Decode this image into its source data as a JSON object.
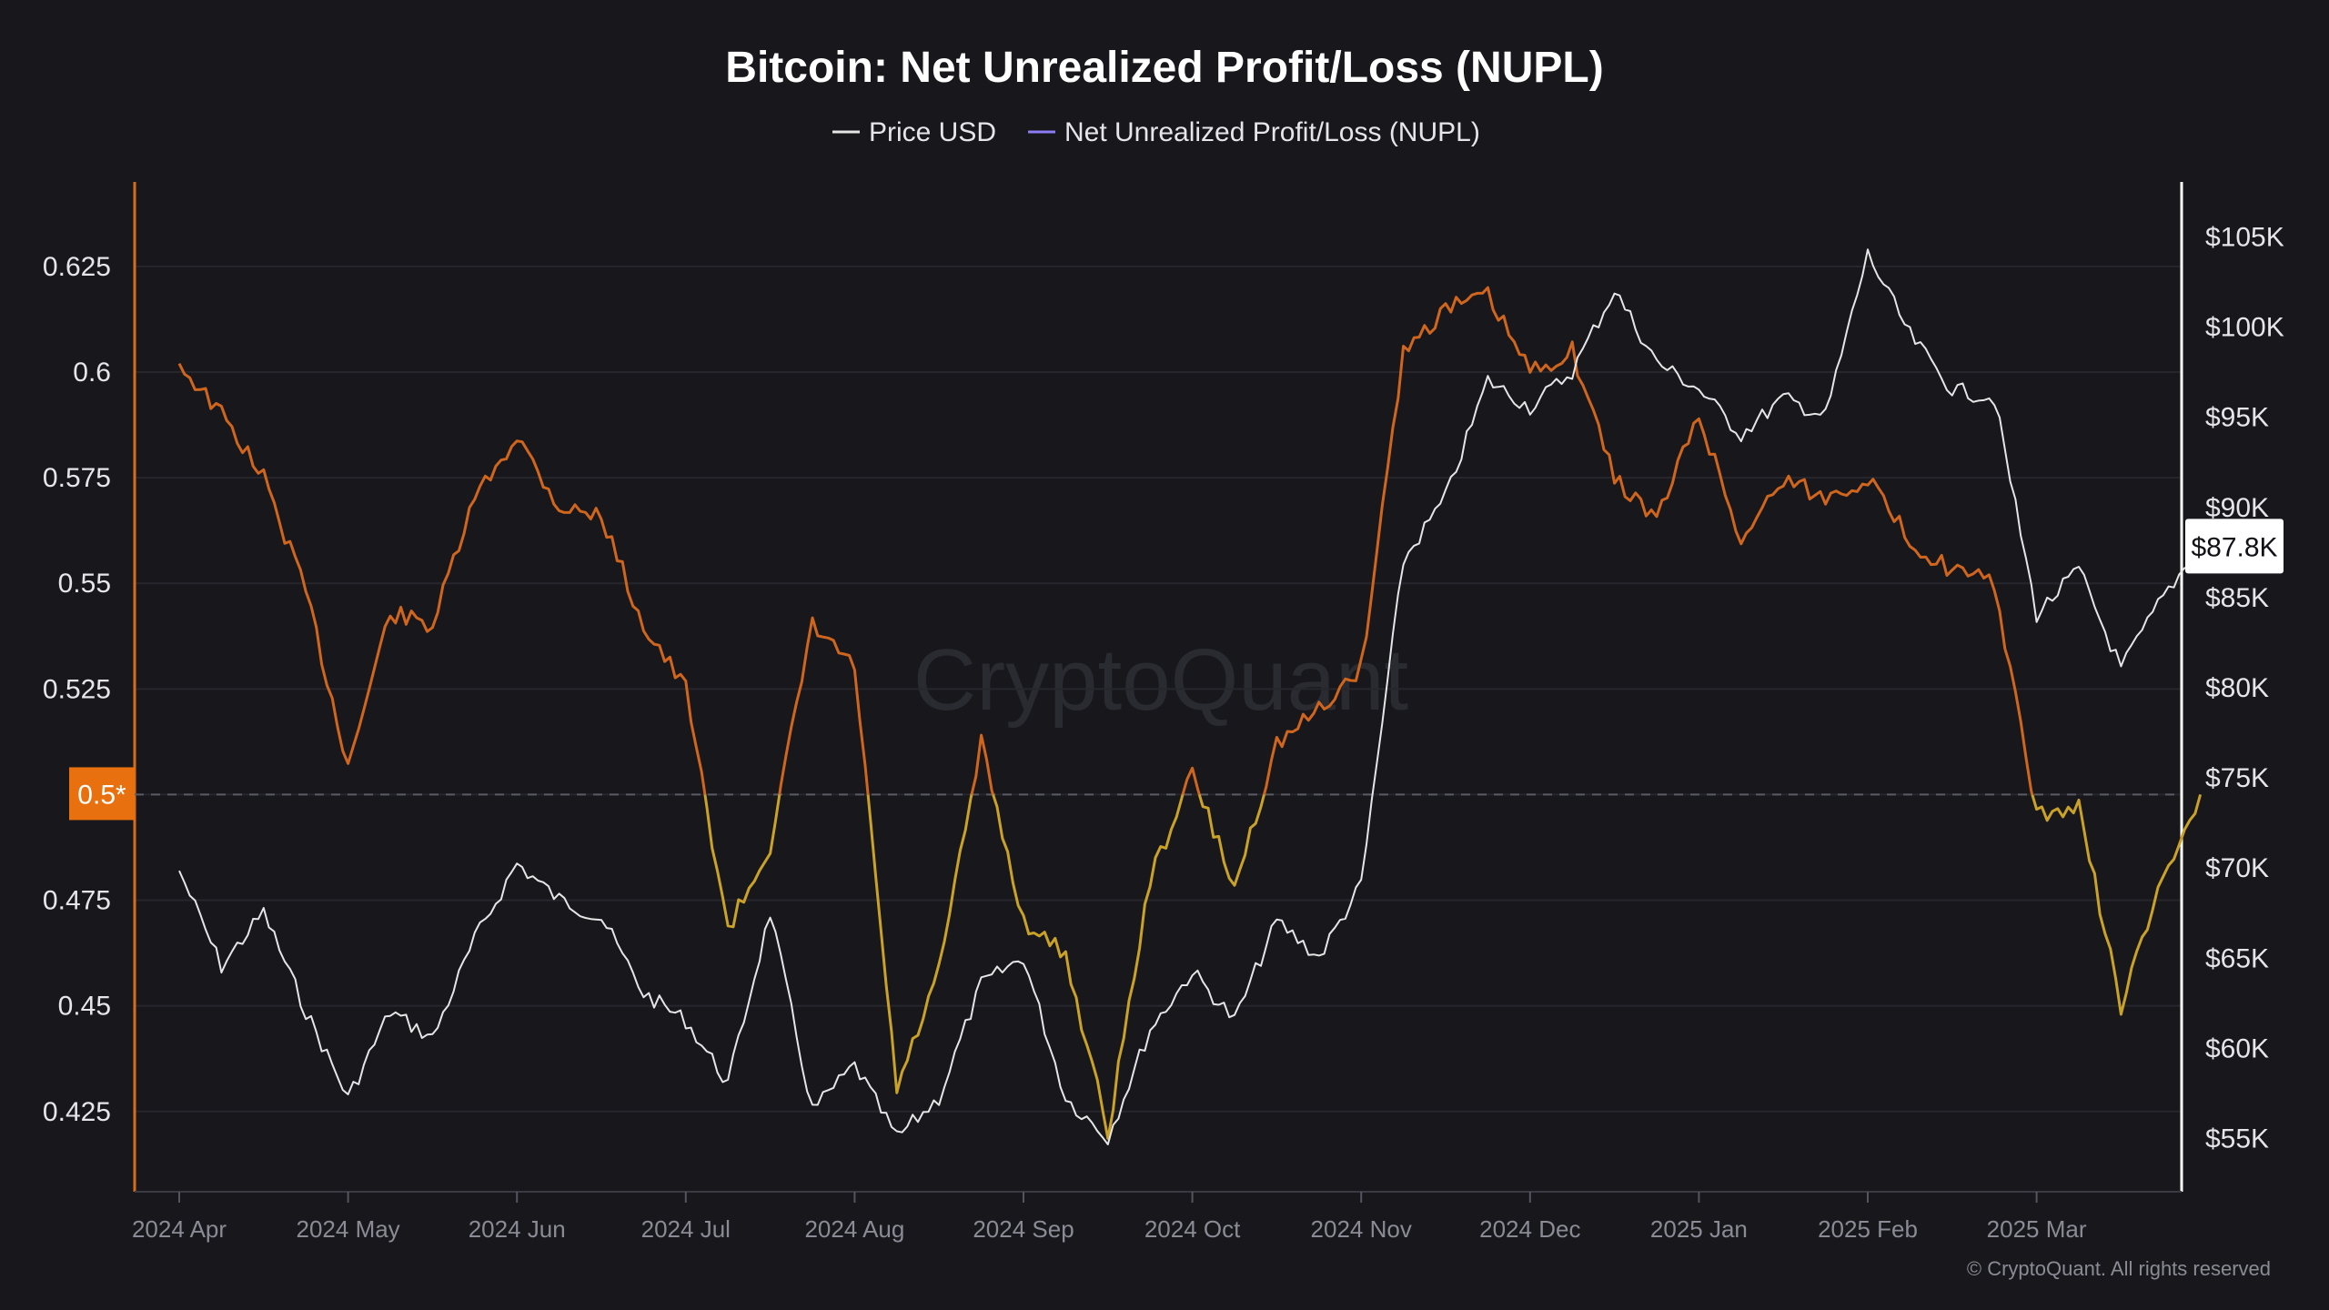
{
  "chart_data": {
    "type": "line",
    "title": "Bitcoin: Net Unrealized Profit/Loss (NUPL)",
    "legend": [
      {
        "name": "Price USD",
        "color": "#e6e6e6"
      },
      {
        "name": "Net Unrealized Profit/Loss (NUPL)",
        "color": "#8b7cf6"
      }
    ],
    "x_tick_labels": [
      "2024 Apr",
      "2024 May",
      "2024 Jun",
      "2024 Jul",
      "2024 Aug",
      "2024 Sep",
      "2024 Oct",
      "2024 Nov",
      "2024 Dec",
      "2025 Jan",
      "2025 Feb",
      "2025 Mar"
    ],
    "y_left": {
      "range": [
        0.406,
        0.645
      ],
      "ticks": [
        0.425,
        0.45,
        0.475,
        0.5,
        0.525,
        0.55,
        0.575,
        0.6,
        0.625
      ],
      "tick_labels": [
        "0.425",
        "0.45",
        "0.475",
        "0.5*",
        "0.525",
        "0.55",
        "0.575",
        "0.6",
        "0.625"
      ],
      "highlight_label": "0.5*",
      "highlight_color": "#e8700e",
      "axis_color": "#d86c1c"
    },
    "y_right": {
      "range": [
        52000,
        108000
      ],
      "ticks": [
        55000,
        60000,
        65000,
        70000,
        75000,
        80000,
        85000,
        90000,
        95000,
        100000,
        105000
      ],
      "tick_labels": [
        "$55K",
        "$60K",
        "$65K",
        "$70K",
        "$75K",
        "$80K",
        "$85K",
        "$90K",
        "$95K",
        "$100K",
        "$105K"
      ],
      "current_label": "$87.8K",
      "axis_color": "#ffffff"
    },
    "reference_line": {
      "value": 0.5,
      "style": "dashed"
    },
    "nupl_color_high": "#d0661e",
    "nupl_color_low": "#c9a227",
    "series": [
      {
        "name": "Price USD",
        "unit": "USD",
        "color": "#e6e6e6",
        "x_months": [
          0,
          0.25,
          0.5,
          0.75,
          1,
          1.25,
          1.5,
          1.75,
          2,
          2.25,
          2.5,
          2.75,
          3,
          3.25,
          3.5,
          3.75,
          4,
          4.25,
          4.5,
          4.75,
          5,
          5.25,
          5.5,
          5.75,
          6,
          6.25,
          6.5,
          6.75,
          7,
          7.25,
          7.5,
          7.75,
          8,
          8.25,
          8.5,
          8.75,
          9,
          9.25,
          9.5,
          9.75,
          10,
          10.25,
          10.5,
          10.75,
          11,
          11.25,
          11.5,
          11.75,
          11.97
        ],
        "values": [
          69800,
          64500,
          67500,
          62000,
          57200,
          62000,
          60500,
          66000,
          70200,
          68200,
          67200,
          63000,
          61500,
          58000,
          67500,
          56500,
          59000,
          55000,
          57200,
          63500,
          65000,
          57200,
          55000,
          61000,
          64200,
          61500,
          67000,
          65000,
          69000,
          87000,
          90500,
          97000,
          95500,
          97500,
          102000,
          98000,
          96500,
          94000,
          96000,
          95000,
          104000,
          99500,
          96500,
          96000,
          84000,
          86500,
          81000,
          85000,
          87800
        ]
      },
      {
        "name": "Net Unrealized Profit/Loss (NUPL)",
        "unit": "ratio",
        "color_above_0_5": "#d0661e",
        "color_below_0_5": "#c9a227",
        "x_months": [
          0,
          0.25,
          0.5,
          0.75,
          1,
          1.25,
          1.5,
          1.75,
          2,
          2.25,
          2.5,
          2.75,
          3,
          3.25,
          3.5,
          3.75,
          4,
          4.25,
          4.5,
          4.75,
          5,
          5.25,
          5.5,
          5.75,
          6,
          6.25,
          6.5,
          6.75,
          7,
          7.25,
          7.5,
          7.75,
          8,
          8.25,
          8.5,
          8.75,
          9,
          9.25,
          9.5,
          9.75,
          10,
          10.25,
          10.5,
          10.75,
          11,
          11.25,
          11.5,
          11.75,
          11.97
        ],
        "values": [
          0.602,
          0.59,
          0.575,
          0.548,
          0.507,
          0.543,
          0.54,
          0.57,
          0.585,
          0.568,
          0.566,
          0.54,
          0.525,
          0.468,
          0.488,
          0.54,
          0.53,
          0.43,
          0.458,
          0.512,
          0.47,
          0.462,
          0.42,
          0.48,
          0.505,
          0.478,
          0.512,
          0.52,
          0.53,
          0.605,
          0.615,
          0.618,
          0.6,
          0.605,
          0.575,
          0.565,
          0.59,
          0.56,
          0.575,
          0.57,
          0.575,
          0.56,
          0.553,
          0.55,
          0.495,
          0.497,
          0.45,
          0.48,
          0.5
        ]
      }
    ],
    "watermark": "CryptoQuant",
    "copyright": "© CryptoQuant. All rights reserved"
  }
}
